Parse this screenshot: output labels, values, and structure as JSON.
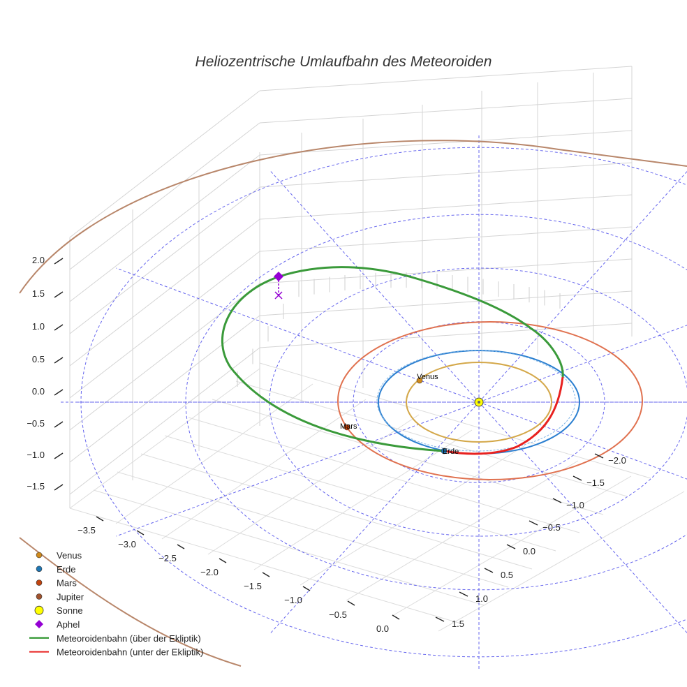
{
  "chart_data": {
    "type": "3d-line",
    "title": "Heliozentrische Umlaufbahn des Meteoroiden",
    "x_ticks": [
      "−3.5",
      "−3.0",
      "−2.5",
      "−2.0",
      "−1.5",
      "−1.0",
      "−0.5",
      "0.0"
    ],
    "y_ticks": [
      "−2.0",
      "−1.5",
      "−1.0",
      "−0.5",
      "0.0",
      "0.5",
      "1.0",
      "1.5"
    ],
    "z_ticks": [
      "2.0",
      "1.5",
      "1.0",
      "0.5",
      "0.0",
      "−0.5",
      "−1.0",
      "−1.5"
    ],
    "xlim": [
      -3.7,
      0.2
    ],
    "ylim": [
      -2.2,
      1.7
    ],
    "zlim": [
      -1.8,
      2.2
    ],
    "planet_labels": [
      "Venus",
      "Erde",
      "Mars"
    ],
    "planet_orbit_radii_au": {
      "Venus": 0.72,
      "Erde": 1.0,
      "Mars": 1.52,
      "Jupiter": 5.2
    },
    "meteoroid": {
      "aphelion_au": 2.3,
      "aphelion_height_au": 0.5,
      "perihelion_au": 0.98
    },
    "legend": [
      {
        "label": "Venus",
        "kind": "dot",
        "color": "#d08a1c"
      },
      {
        "label": "Erde",
        "kind": "dot",
        "color": "#1f77b4"
      },
      {
        "label": "Mars",
        "kind": "dot",
        "color": "#c1440e"
      },
      {
        "label": "Jupiter",
        "kind": "dot",
        "color": "#a0522d"
      },
      {
        "label": "Sonne",
        "kind": "bigdot",
        "color": "#ffff00"
      },
      {
        "label": "Aphel",
        "kind": "diamond",
        "color": "#9400d3"
      },
      {
        "label": "Meteoroidenbahn (über der Ekliptik)",
        "kind": "line",
        "color": "#1a8c1a"
      },
      {
        "label": "Meteoroidenbahn (unter der Ekliptik)",
        "kind": "line",
        "color": "#e8211f"
      }
    ],
    "colors": {
      "venus_orbit": "#d4a84a",
      "earth_orbit": "#2b7fd0",
      "mars_orbit": "#e0714f",
      "jupiter_orbit": "#b8866a",
      "above": "#3a9a3a",
      "below": "#e8211f",
      "grid_ref": "#6666ee"
    }
  }
}
